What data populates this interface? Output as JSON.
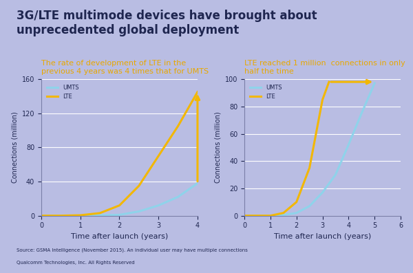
{
  "title": "3G/LTE multimode devices have brought about unprecedented global deployment",
  "source": "Source: GSMA Intelligence (November 2015). An individual user may have multiple connections",
  "footer": "Qualcomm Technologies, Inc. All Rights Reserved",
  "chart_data": [
    {
      "type": "line",
      "title": "The rate of development of LTE in the previous 4 years was 4 times that for UMTS",
      "x_label": "Time after launch (years)",
      "y_label": "Connections (million)",
      "x": [
        0,
        0.5,
        1,
        1.5,
        2,
        2.5,
        3,
        3.5,
        4
      ],
      "series": [
        {
          "name": "UMTS",
          "color": "#8fd3ea",
          "values": [
            0,
            0,
            0,
            0.5,
            1,
            5,
            12,
            22,
            38
          ]
        },
        {
          "name": "LTE",
          "color": "#f2b705",
          "values": [
            0,
            0,
            0.5,
            3,
            12,
            35,
            70,
            105,
            145
          ]
        }
      ],
      "xlim": [
        0,
        4
      ],
      "xticks": [
        0,
        1,
        2,
        3,
        4
      ],
      "ylim": [
        0,
        160
      ],
      "yticks": [
        0,
        40,
        80,
        120,
        160
      ],
      "grid": true,
      "legend": "upper left"
    },
    {
      "type": "line",
      "title": "LTE reached 1 million  connections in only half the time",
      "x_label": "Time after launch (years)",
      "y_label": "Connections (million)",
      "series": [
        {
          "name": "UMTS",
          "color": "#8fd3ea",
          "x": [
            0,
            1,
            1.5,
            2,
            2.5,
            3,
            3.5,
            4,
            4.5,
            5
          ],
          "values": [
            0,
            0,
            0.5,
            2,
            7,
            17,
            30,
            52,
            75,
            97
          ]
        },
        {
          "name": "LTE",
          "color": "#f2b705",
          "x": [
            0,
            1,
            1.5,
            2,
            2.5,
            2.75,
            3,
            3.25
          ],
          "values": [
            0,
            0,
            2,
            10,
            35,
            60,
            85,
            98
          ]
        }
      ],
      "xlim": [
        0,
        6
      ],
      "xticks": [
        0,
        1,
        2,
        3,
        4,
        5,
        6
      ],
      "ylim": [
        0,
        100
      ],
      "yticks": [
        0,
        20,
        40,
        60,
        80,
        100
      ],
      "grid": true,
      "legend": "upper left"
    }
  ]
}
